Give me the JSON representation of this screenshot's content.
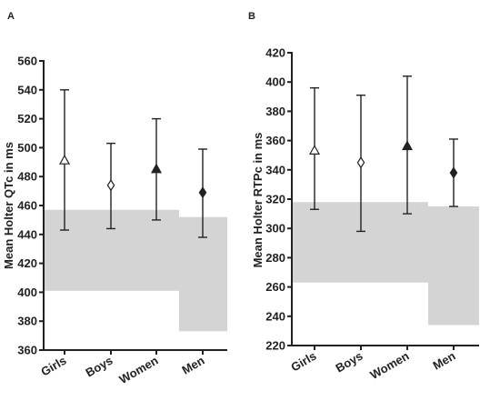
{
  "chart_data": [
    {
      "panel": "A",
      "type": "scatter",
      "categories": [
        "Girls",
        "Boys",
        "Women",
        "Men"
      ],
      "ylabel": "Mean Holter QTc in ms",
      "xlabel": "",
      "ylim": [
        360,
        560
      ],
      "yticks": [
        360,
        380,
        400,
        420,
        440,
        460,
        480,
        500,
        520,
        540,
        560
      ],
      "means": [
        491,
        474,
        485,
        469
      ],
      "lower": [
        443,
        444,
        450,
        438
      ],
      "upper": [
        540,
        503,
        520,
        499
      ],
      "markers": [
        "open-triangle",
        "open-diamond",
        "filled-triangle",
        "filled-diamond"
      ],
      "reference_ranges": [
        {
          "categories": [
            "Girls",
            "Boys",
            "Women"
          ],
          "low": 401,
          "high": 457
        },
        {
          "categories": [
            "Men"
          ],
          "low": 373,
          "high": 452
        }
      ],
      "shade_color": "#d4d4d4"
    },
    {
      "panel": "B",
      "type": "scatter",
      "categories": [
        "Girls",
        "Boys",
        "Women",
        "Men"
      ],
      "ylabel": "Mean Holter RTPc in ms",
      "xlabel": "",
      "ylim": [
        220,
        420
      ],
      "yticks": [
        220,
        240,
        260,
        280,
        300,
        320,
        340,
        360,
        380,
        400,
        420
      ],
      "means": [
        353,
        345,
        356,
        338
      ],
      "lower": [
        313,
        298,
        310,
        315
      ],
      "upper": [
        396,
        391,
        404,
        361
      ],
      "markers": [
        "open-triangle",
        "open-diamond",
        "filled-triangle",
        "filled-diamond"
      ],
      "reference_ranges": [
        {
          "categories": [
            "Girls",
            "Boys",
            "Women"
          ],
          "low": 263,
          "high": 318
        },
        {
          "categories": [
            "Men"
          ],
          "low": 234,
          "high": 315
        }
      ],
      "shade_color": "#d4d4d4"
    }
  ]
}
